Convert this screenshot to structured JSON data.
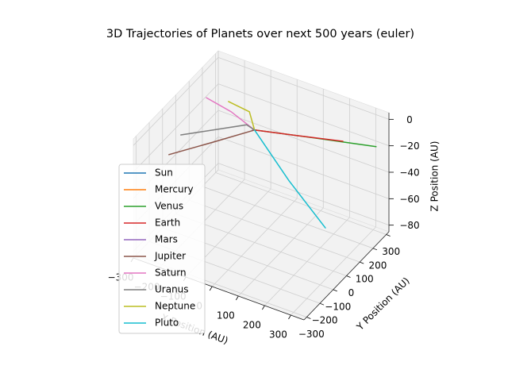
{
  "chart_data": {
    "type": "line3d",
    "title": "3D Trajectories of Planets over next 500 years (euler)",
    "xlabel": "X Position (AU)",
    "ylabel": "Y Position (AU)",
    "zlabel": "Z Position (AU)",
    "xlim": [
      -300,
      350
    ],
    "ylim": [
      -320,
      320
    ],
    "zlim": [
      -85,
      5
    ],
    "xticks": [
      {
        "value": -300,
        "label": "−300"
      },
      {
        "value": -200,
        "label": "−200"
      },
      {
        "value": -100,
        "label": "−100"
      },
      0,
      100,
      200,
      300
    ],
    "yticks": [
      {
        "value": -300,
        "label": "−300"
      },
      {
        "value": -200,
        "label": "−200"
      },
      {
        "value": -100,
        "label": "−100"
      },
      0,
      100,
      200,
      300
    ],
    "zticks": [
      {
        "value": -80,
        "label": "−80"
      },
      {
        "value": -60,
        "label": "−60"
      },
      {
        "value": -40,
        "label": "−40"
      },
      {
        "value": -20,
        "label": "−20"
      },
      0
    ],
    "grid": true,
    "legend": "lower left",
    "series": [
      {
        "name": "Sun",
        "color": "#1f77b4",
        "x": [
          0,
          0
        ],
        "y": [
          0,
          0
        ],
        "z": [
          0,
          0
        ]
      },
      {
        "name": "Mercury",
        "color": "#ff7f0e",
        "x": [
          0,
          3
        ],
        "y": [
          0,
          2
        ],
        "z": [
          0,
          0
        ]
      },
      {
        "name": "Venus",
        "color": "#2ca02c",
        "x": [
          0,
          150,
          345
        ],
        "y": [
          0,
          110,
          233
        ],
        "z": [
          0,
          -6,
          -12
        ]
      },
      {
        "name": "Earth",
        "color": "#d62728",
        "x": [
          0,
          120,
          244
        ],
        "y": [
          0,
          90,
          183
        ],
        "z": [
          0,
          -5,
          -10
        ]
      },
      {
        "name": "Mars",
        "color": "#9467bd",
        "x": [
          0,
          -6
        ],
        "y": [
          0,
          -5
        ],
        "z": [
          0,
          0
        ]
      },
      {
        "name": "Jupiter",
        "color": "#8c564b",
        "x": [
          0,
          -90,
          -193
        ],
        "y": [
          0,
          -130,
          -264
        ],
        "z": [
          0,
          -2,
          -5
        ]
      },
      {
        "name": "Saturn",
        "color": "#e377c2",
        "x": [
          0,
          -120,
          -224
        ],
        "y": [
          0,
          60,
          80
        ],
        "z": [
          0,
          -1,
          0
        ]
      },
      {
        "name": "Uranus",
        "color": "#7f7f7f",
        "x": [
          0,
          -40,
          -202
        ],
        "y": [
          0,
          20,
          -156
        ],
        "z": [
          0,
          -1,
          -2
        ]
      },
      {
        "name": "Neptune",
        "color": "#bcbd22",
        "x": [
          0,
          -50,
          -133
        ],
        "y": [
          0,
          60,
          67
        ],
        "z": [
          0,
          4,
          5
        ]
      },
      {
        "name": "Pluto",
        "color": "#17becf",
        "x": [
          0,
          90,
          178
        ],
        "y": [
          0,
          80,
          181
        ],
        "z": [
          0,
          -40,
          -80
        ]
      }
    ]
  }
}
